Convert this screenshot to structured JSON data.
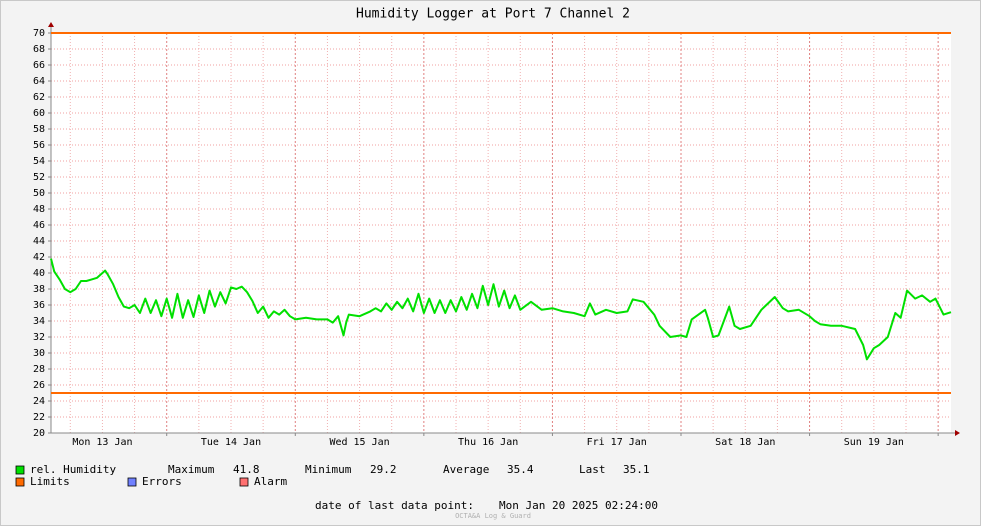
{
  "chart_data": {
    "type": "line",
    "title": "Humidity Logger at Port 7 Channel 2",
    "x": [
      2.4,
      3,
      4,
      5,
      6,
      7,
      8,
      9,
      10,
      11,
      12,
      12.5,
      13,
      14,
      15,
      16,
      17,
      18,
      19,
      20,
      21,
      22,
      23,
      24,
      25,
      26,
      27,
      28,
      29,
      30,
      31,
      32,
      33,
      34,
      35,
      36,
      37,
      38,
      39,
      40,
      41,
      42,
      43,
      44,
      45,
      46,
      47,
      48,
      50,
      52,
      54,
      55,
      56,
      57,
      57.5,
      58,
      60,
      62,
      63,
      64,
      65,
      66,
      67,
      68,
      69,
      70,
      71,
      72,
      73,
      74,
      75,
      76,
      77,
      78,
      79,
      80,
      81,
      82,
      83,
      84,
      85,
      86,
      87,
      88,
      89,
      90,
      92,
      94,
      96,
      98,
      100,
      102,
      103,
      104,
      106,
      108,
      110,
      111,
      113,
      115,
      116,
      118,
      120,
      121,
      122,
      124.5,
      125,
      126,
      127,
      128,
      129,
      130,
      131,
      133,
      135,
      137.5,
      139,
      140,
      142,
      144,
      145,
      146,
      148,
      150,
      152.5,
      154,
      154.7,
      156,
      157,
      158.6,
      160,
      161,
      162.2,
      163.7,
      165,
      166.5,
      167.5,
      169,
      170.4
    ],
    "series": [
      {
        "name": "rel. Humidity",
        "color": "#00e000",
        "values": [
          41.8,
          40.2,
          39.2,
          38.0,
          37.6,
          38.0,
          39.0,
          39.0,
          39.2,
          39.4,
          40.0,
          40.3,
          39.8,
          38.6,
          37.0,
          35.8,
          35.6,
          36.0,
          35.0,
          36.8,
          35.0,
          36.6,
          34.6,
          36.8,
          34.4,
          37.4,
          34.4,
          36.6,
          34.5,
          37.2,
          35.0,
          37.8,
          35.8,
          37.6,
          36.2,
          38.2,
          38.0,
          38.3,
          37.6,
          36.5,
          35.0,
          35.8,
          34.4,
          35.2,
          34.8,
          35.4,
          34.6,
          34.2,
          34.4,
          34.2,
          34.2,
          33.8,
          34.6,
          32.2,
          33.8,
          34.8,
          34.6,
          35.2,
          35.6,
          35.2,
          36.2,
          35.4,
          36.4,
          35.6,
          36.8,
          35.2,
          37.4,
          35.0,
          36.8,
          35.0,
          36.6,
          35.0,
          36.6,
          35.2,
          37.0,
          35.4,
          37.4,
          35.6,
          38.4,
          36.0,
          38.6,
          35.8,
          37.8,
          35.6,
          37.2,
          35.4,
          36.4,
          35.4,
          35.6,
          35.2,
          35.0,
          34.6,
          36.2,
          34.8,
          35.4,
          35.0,
          35.2,
          36.7,
          36.4,
          34.8,
          33.4,
          32.0,
          32.2,
          32.0,
          34.2,
          35.4,
          34.4,
          32.0,
          32.2,
          34.0,
          35.8,
          33.4,
          33.0,
          33.4,
          35.4,
          37.0,
          35.6,
          35.2,
          35.4,
          34.6,
          34.0,
          33.6,
          33.4,
          33.4,
          33.0,
          31.0,
          29.2,
          30.6,
          31.0,
          32.0,
          35.0,
          34.4,
          37.8,
          36.8,
          37.2,
          36.4,
          36.8,
          34.8,
          35.1
        ]
      }
    ],
    "limits": {
      "name": "Limits",
      "color": "#ff6a00",
      "values": [
        70,
        25
      ]
    },
    "legend_extra": [
      {
        "name": "Errors",
        "color": "#7080ff"
      },
      {
        "name": "Alarm",
        "color": "#ff7070"
      }
    ],
    "stats": [
      {
        "label": "Maximum",
        "value": 41.8
      },
      {
        "label": "Minimum",
        "value": 29.2
      },
      {
        "label": "Average",
        "value": 35.4
      },
      {
        "label": "Last",
        "value": 35.1
      }
    ],
    "footer": {
      "label": "date of last data point:",
      "value": "Mon Jan 20 2025 02:24:00"
    },
    "watermark": "OCTA&A Log & Guard",
    "xlim": [
      2.4,
      170.4
    ],
    "xticks": [
      {
        "value": 12,
        "label": "Mon 13 Jan"
      },
      {
        "value": 36,
        "label": "Tue 14 Jan"
      },
      {
        "value": 60,
        "label": "Wed 15 Jan"
      },
      {
        "value": 84,
        "label": "Thu 16 Jan"
      },
      {
        "value": 108,
        "label": "Fri 17 Jan"
      },
      {
        "value": 132,
        "label": "Sat 18 Jan"
      },
      {
        "value": 156,
        "label": "Sun 19 Jan"
      }
    ],
    "xgrid": [
      6,
      12,
      18,
      24,
      30,
      36,
      42,
      48,
      54,
      60,
      66,
      72,
      78,
      84,
      90,
      96,
      102,
      108,
      114,
      120,
      126,
      132,
      138,
      144,
      150,
      156,
      162,
      168
    ],
    "ylim": [
      20,
      70
    ],
    "yticks": [
      20,
      22,
      24,
      26,
      28,
      30,
      32,
      34,
      36,
      38,
      40,
      42,
      44,
      46,
      48,
      50,
      52,
      54,
      56,
      58,
      60,
      62,
      64,
      66,
      68,
      70
    ],
    "grid": true
  }
}
